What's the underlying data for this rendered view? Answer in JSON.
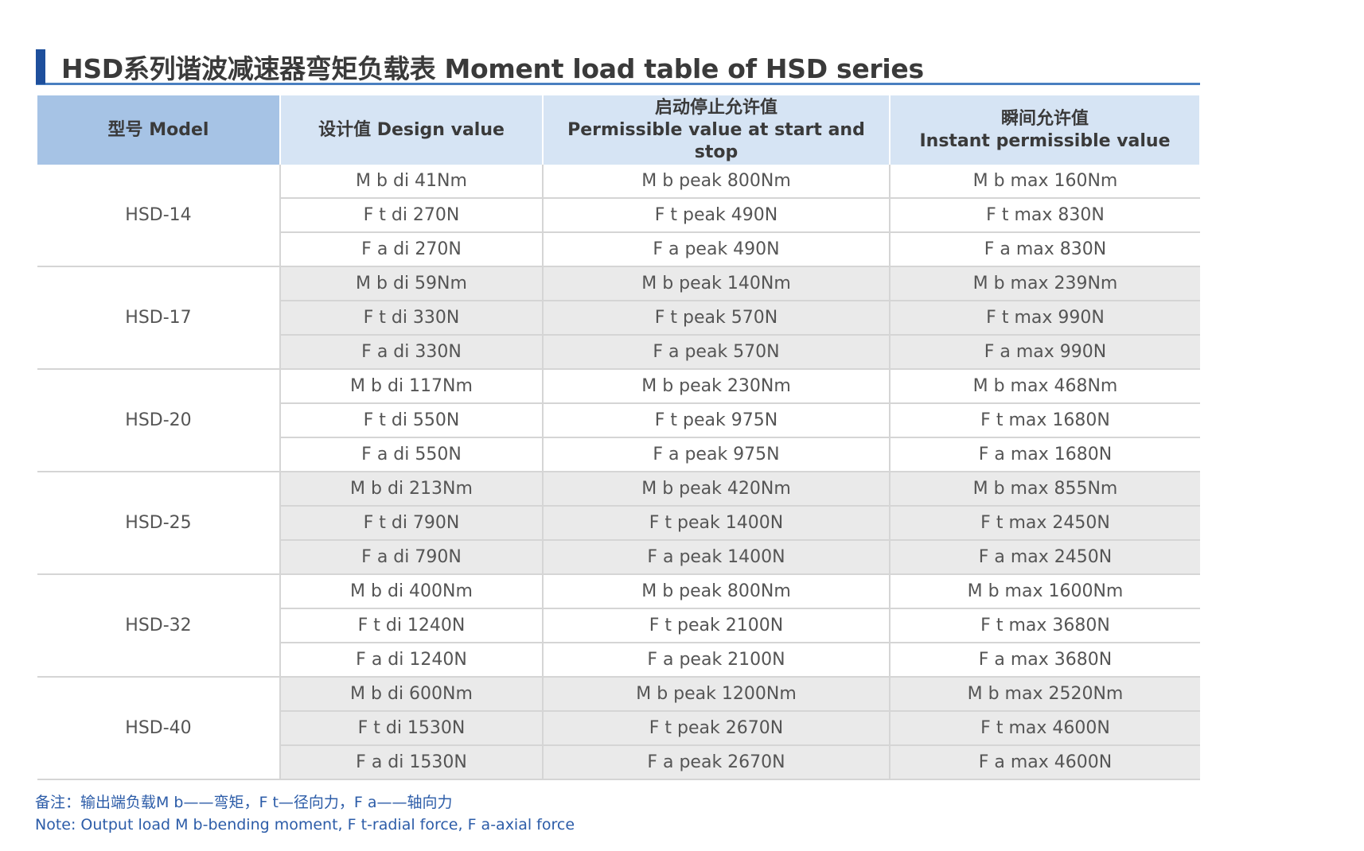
{
  "title": "HSD系列谐波减速器弯矩负载表 Moment load table of HSD series",
  "header": {
    "model": "型号 Model",
    "design": "设计值 Design value",
    "start_stop_cn": "启动停止允许值",
    "start_stop_en": "Permissible value at start and stop",
    "instant_cn": "瞬间允许值",
    "instant_en": "Instant permissible value"
  },
  "groups": [
    {
      "model": "HSD-14",
      "shaded": false,
      "rows": [
        [
          "M b di 41Nm",
          "M b peak 800Nm",
          "M b max 160Nm"
        ],
        [
          "F t di 270N",
          "F t peak 490N",
          "F t max 830N"
        ],
        [
          "F a di 270N",
          "F a peak 490N",
          "F a max 830N"
        ]
      ]
    },
    {
      "model": "HSD-17",
      "shaded": true,
      "rows": [
        [
          "M b di 59Nm",
          "M b peak 140Nm",
          "M b max 239Nm"
        ],
        [
          "F t di 330N",
          "F t peak 570N",
          "F t max 990N"
        ],
        [
          "F a di 330N",
          "F a peak 570N",
          "F a max 990N"
        ]
      ]
    },
    {
      "model": "HSD-20",
      "shaded": false,
      "rows": [
        [
          "M b di 117Nm",
          "M b peak 230Nm",
          "M b max 468Nm"
        ],
        [
          "F t di 550N",
          "F t peak 975N",
          "F t max 1680N"
        ],
        [
          "F a di 550N",
          "F a peak 975N",
          "F a max 1680N"
        ]
      ]
    },
    {
      "model": "HSD-25",
      "shaded": true,
      "rows": [
        [
          "M b di 213Nm",
          "M b peak 420Nm",
          "M b max 855Nm"
        ],
        [
          "F t di 790N",
          "F t peak 1400N",
          "F t max 2450N"
        ],
        [
          "F a di 790N",
          "F a peak 1400N",
          "F a max 2450N"
        ]
      ]
    },
    {
      "model": "HSD-32",
      "shaded": false,
      "rows": [
        [
          "M b di 400Nm",
          "M b peak 800Nm",
          "M b max 1600Nm"
        ],
        [
          "F t di 1240N",
          "F t peak 2100N",
          "F t max 3680N"
        ],
        [
          "F a di 1240N",
          "F a peak 2100N",
          "F a max 3680N"
        ]
      ]
    },
    {
      "model": "HSD-40",
      "shaded": true,
      "rows": [
        [
          "M b di 600Nm",
          "M b peak 1200Nm",
          "M b max 2520Nm"
        ],
        [
          "F t di 1530N",
          "F t peak 2670N",
          "F t max 4600N"
        ],
        [
          "F a di 1530N",
          "F a peak 2670N",
          "F a max 4600N"
        ]
      ]
    }
  ],
  "notes": {
    "cn": "备注：输出端负载M b——弯矩，F t—径向力，F a——轴向力",
    "en": "Note: Output load M b-bending moment, F t-radial force, F a-axial force"
  },
  "colors": {
    "accent": "#1e4f9c",
    "header_model": "#a6c3e5",
    "header": "#d6e4f4",
    "shaded_row": "#eaeaea",
    "note_text": "#2c5ca8"
  }
}
